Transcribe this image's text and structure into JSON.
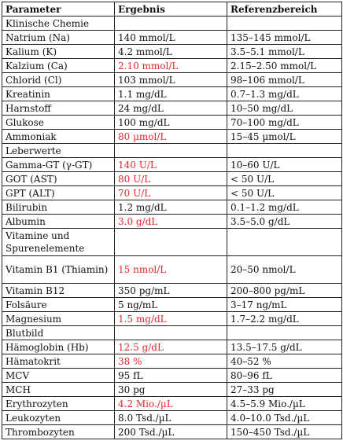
{
  "headers": [
    "Parameter",
    "Ergebnis",
    "Referenzbereich"
  ],
  "colors": {
    "abnormal": "#e8262b",
    "text": "#111111",
    "border": "#222222"
  },
  "rows": [
    {
      "section": "Klinische Chemie"
    },
    {
      "param": "Natrium (Na)",
      "result": "140 mmol/L",
      "ref": "135–145 mmol/L",
      "abnormal": false
    },
    {
      "param": "Kalium (K)",
      "result": "4.2 mmol/L",
      "ref": "3.5–5.1 mmol/L",
      "abnormal": false
    },
    {
      "param": "Kalzium (Ca)",
      "result": "2.10 mmol/L",
      "ref": "2.15–2.50 mmol/L",
      "abnormal": true
    },
    {
      "param": "Chlorid (Cl)",
      "result": "103 mmol/L",
      "ref": "98–106 mmol/L",
      "abnormal": false
    },
    {
      "param": "Kreatinin",
      "result": "1.1 mg/dL",
      "ref": "0.7–1.3 mg/dL",
      "abnormal": false
    },
    {
      "param": "Harnstoff",
      "result": "24 mg/dL",
      "ref": "10–50 mg/dL",
      "abnormal": false
    },
    {
      "param": "Glukose",
      "result": "100 mg/dL",
      "ref": "70–100 mg/dL",
      "abnormal": false
    },
    {
      "param": "Ammoniak",
      "result": "80 µmol/L",
      "ref": "15–45 µmol/L",
      "abnormal": true
    },
    {
      "section": "Leberwerte"
    },
    {
      "param": "Gamma-GT (γ-GT)",
      "result": "140 U/L",
      "ref": "10–60 U/L",
      "abnormal": true
    },
    {
      "param": "GOT (AST)",
      "result": "80 U/L",
      "ref": "< 50 U/L",
      "abnormal": true
    },
    {
      "param": "GPT (ALT)",
      "result": "70 U/L",
      "ref": "< 50 U/L",
      "abnormal": true
    },
    {
      "param": "Bilirubin",
      "result": "1.2 mg/dL",
      "ref": "0.1–1.2 mg/dL",
      "abnormal": false
    },
    {
      "param": "Albumin",
      "result": "3.0 g/dL",
      "ref": "3.5–5.0 g/dL",
      "abnormal": true
    },
    {
      "section": "Vitamine und Spurenelemente",
      "wrap": true
    },
    {
      "param": "Vitamin B1 (Thiamin)",
      "result": "15 nmol/L",
      "ref": "20–50 nmol/L",
      "abnormal": true,
      "wrap": true
    },
    {
      "param": "Vitamin B12",
      "result": "350 pg/mL",
      "ref": "200–800 pg/mL",
      "abnormal": false
    },
    {
      "param": "Folsäure",
      "result": "5 ng/mL",
      "ref": "3–17 ng/mL",
      "abnormal": false
    },
    {
      "param": "Magnesium",
      "result": "1.5 mg/dL",
      "ref": "1.7–2.2 mg/dL",
      "abnormal": true
    },
    {
      "section": "Blutbild"
    },
    {
      "param": "Hämoglobin (Hb)",
      "result": "12.5 g/dL",
      "ref": "13.5–17.5 g/dL",
      "abnormal": true
    },
    {
      "param": "Hämatokrit",
      "result": "38 %",
      "ref": "40–52 %",
      "abnormal": true
    },
    {
      "param": "MCV",
      "result": "95 fL",
      "ref": "80–96 fL",
      "abnormal": false
    },
    {
      "param": "MCH",
      "result": "30 pg",
      "ref": "27–33 pg",
      "abnormal": false
    },
    {
      "param": "Erythrozyten",
      "result": "4.2 Mio./µL",
      "ref": "4.5–5.9 Mio./µL",
      "abnormal": true
    },
    {
      "param": "Leukozyten",
      "result": "8.0 Tsd./µL",
      "ref": "4.0–10.0 Tsd./µL",
      "abnormal": false
    },
    {
      "param": "Thrombozyten",
      "result": "200 Tsd./µL",
      "ref": "150–450 Tsd./µL",
      "abnormal": false
    }
  ]
}
